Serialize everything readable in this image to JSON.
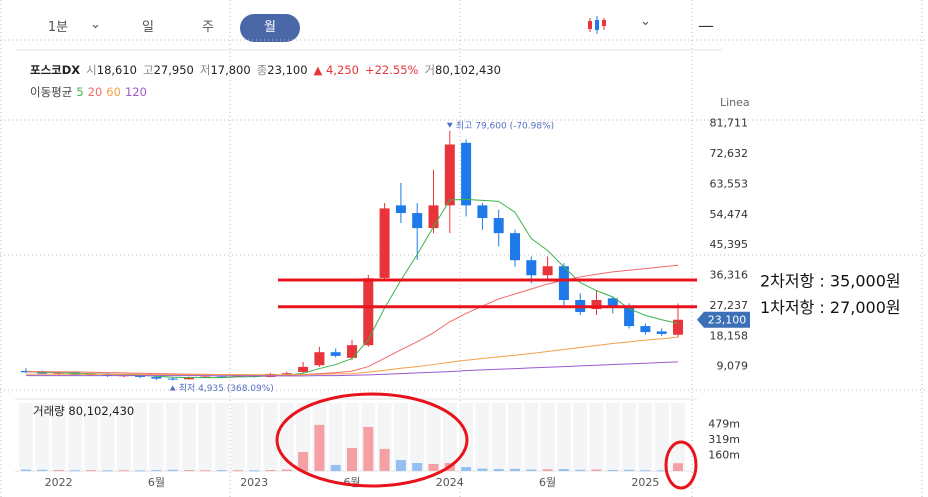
{
  "toolbar": {
    "tabs": [
      "1분",
      "일",
      "주",
      "월"
    ],
    "selected": "월"
  },
  "header": {
    "name": "포스코DX",
    "fields": [
      {
        "key": "시",
        "value": "18,610"
      },
      {
        "key": "고",
        "value": "27,950"
      },
      {
        "key": "저",
        "value": "17,800"
      },
      {
        "key": "종",
        "value": "23,100"
      }
    ],
    "change": "▲ 4,250",
    "change_pct": "+22.55%",
    "volume_key": "거",
    "volume_value": "80,102,430"
  },
  "chart_data": [
    {
      "type": "candlestick",
      "categories": [
        null,
        null,
        "2022",
        null,
        null,
        null,
        null,
        null,
        "6월",
        null,
        null,
        null,
        null,
        null,
        "2023",
        null,
        null,
        null,
        null,
        null,
        "6월",
        null,
        null,
        null,
        null,
        null,
        "2024",
        null,
        null,
        null,
        null,
        null,
        "6월",
        null,
        null,
        null,
        null,
        null,
        "2025",
        null,
        null
      ],
      "open": [
        7800,
        7400,
        7000,
        7300,
        6600,
        6900,
        6300,
        6500,
        6000,
        5500,
        5300,
        5900,
        6100,
        6000,
        6500,
        6000,
        6900,
        7500,
        9500,
        13400,
        11700,
        15500,
        35600,
        57300,
        55000,
        50500,
        57300,
        76000,
        57300,
        53500,
        49000,
        40900,
        36400,
        39100,
        29000,
        26300,
        29500,
        27200,
        21200,
        19600,
        18610
      ],
      "high": [
        8600,
        7900,
        7600,
        7500,
        7100,
        7200,
        6700,
        6800,
        6200,
        6000,
        6100,
        6400,
        6500,
        6600,
        6800,
        7200,
        7600,
        10500,
        15000,
        14500,
        17000,
        36500,
        58000,
        64000,
        58000,
        68000,
        79600,
        77000,
        58000,
        56000,
        50000,
        42000,
        42000,
        40000,
        31000,
        32000,
        30000,
        28000,
        22000,
        20500,
        27950
      ],
      "low": [
        7100,
        6700,
        6600,
        6400,
        6300,
        6000,
        5900,
        5600,
        5100,
        4935,
        5200,
        5700,
        5800,
        5900,
        5800,
        5900,
        6700,
        7200,
        9000,
        11800,
        11000,
        15000,
        34500,
        52000,
        41000,
        49000,
        49000,
        54000,
        50000,
        45000,
        39000,
        34000,
        35000,
        27500,
        24500,
        24500,
        25000,
        20500,
        18600,
        18200,
        17800
      ],
      "close": [
        7400,
        7000,
        7300,
        6600,
        6900,
        6300,
        6500,
        6000,
        5500,
        5300,
        5900,
        6100,
        6000,
        6500,
        6000,
        6900,
        7100,
        9000,
        13400,
        12300,
        15500,
        35500,
        56400,
        55000,
        50500,
        57300,
        75500,
        57300,
        53500,
        49000,
        40900,
        36400,
        39100,
        29000,
        25400,
        29000,
        27200,
        21200,
        19400,
        18850,
        23100
      ],
      "up_color": "#e8343a",
      "down_color": "#1e7ae8",
      "ma_label": "이동평균",
      "series": [
        {
          "name": "5",
          "color": "#3cb44b",
          "values": [
            7600,
            7400,
            7300,
            7100,
            7000,
            6800,
            6700,
            6500,
            6200,
            5900,
            5800,
            5800,
            5800,
            6000,
            6100,
            6300,
            6500,
            7100,
            8500,
            9700,
            11500,
            17100,
            26600,
            34900,
            42600,
            50900,
            58900,
            59100,
            58800,
            58500,
            55200,
            47400,
            43800,
            38900,
            34200,
            31800,
            29900,
            26400,
            24400,
            23100,
            22000
          ]
        },
        {
          "name": "20",
          "color": "#f06a6a",
          "values": [
            7600,
            7600,
            7500,
            7500,
            7400,
            7300,
            7200,
            7100,
            7000,
            6900,
            6800,
            6800,
            6700,
            6700,
            6600,
            6600,
            6600,
            6700,
            7000,
            7300,
            7700,
            9100,
            11600,
            14100,
            16500,
            19200,
            22500,
            25000,
            27200,
            29300,
            30800,
            32300,
            33800,
            34900,
            35900,
            36700,
            37400,
            37900,
            38400,
            38900,
            39400
          ]
        },
        {
          "name": "60",
          "color": "#f5a04a",
          "values": [
            6800,
            6800,
            6800,
            6800,
            6800,
            6800,
            6800,
            6800,
            6700,
            6700,
            6700,
            6700,
            6700,
            6600,
            6600,
            6600,
            6600,
            6700,
            6800,
            6900,
            7000,
            7400,
            8000,
            8600,
            9100,
            9700,
            10400,
            11000,
            11500,
            12000,
            12500,
            13000,
            13600,
            14200,
            14800,
            15400,
            16000,
            16500,
            17000,
            17400,
            17900
          ]
        },
        {
          "name": "120",
          "color": "#9b59d0",
          "values": [
            6400,
            6400,
            6400,
            6400,
            6400,
            6400,
            6400,
            6400,
            6400,
            6400,
            6400,
            6400,
            6300,
            6300,
            6300,
            6300,
            6300,
            6300,
            6400,
            6400,
            6500,
            6600,
            6800,
            7000,
            7200,
            7400,
            7600,
            7900,
            8100,
            8300,
            8500,
            8700,
            8900,
            9100,
            9300,
            9500,
            9700,
            9900,
            10100,
            10300,
            10500
          ]
        }
      ],
      "ylim": [
        0,
        90000
      ],
      "yticks": [
        {
          "value": 9079,
          "label": "9,079"
        },
        {
          "value": 18158,
          "label": "18,158"
        },
        {
          "value": 27237,
          "label": "27,237"
        },
        {
          "value": 36316,
          "label": "36,316"
        },
        {
          "value": 45395,
          "label": "45,395"
        },
        {
          "value": 54474,
          "label": "54,474"
        },
        {
          "value": 63553,
          "label": "63,553"
        },
        {
          "value": 72632,
          "label": "72,632"
        },
        {
          "value": 81711,
          "label": "81,711"
        }
      ],
      "grid": false,
      "scale_label": "Linea",
      "high_label": "최고 79,600 (-70.98%)",
      "low_label": "최저 4,935 (368.09%)",
      "price_tag": "23,100",
      "resistance": [
        {
          "value": 35000,
          "label": "2차저항 : 35,000원",
          "color": "#e8141c"
        },
        {
          "value": 27000,
          "label": "1차저항 : 27,000원",
          "color": "#e8141c"
        }
      ]
    },
    {
      "type": "bar",
      "title": "거래량",
      "title_value": "80,102,430",
      "values": [
        15000000,
        12000000,
        10000000,
        8000000,
        9000000,
        7000000,
        8000000,
        6000000,
        9000000,
        12000000,
        10000000,
        8000000,
        9000000,
        8000000,
        7000000,
        10000000,
        15000000,
        196000000,
        475000000,
        62000000,
        237000000,
        454000000,
        227000000,
        113000000,
        82000000,
        72000000,
        82000000,
        41000000,
        25000000,
        20000000,
        22000000,
        15000000,
        18000000,
        20000000,
        12000000,
        15000000,
        10000000,
        12000000,
        8000000,
        6000000,
        80102430
      ],
      "up_color": "#f4a0a4",
      "down_color": "#93c0f0",
      "ylim": [
        0,
        700000000
      ],
      "yticks": [
        {
          "value": 160000000,
          "label": "160m"
        },
        {
          "value": 319000000,
          "label": "319m"
        },
        {
          "value": 479000000,
          "label": "479m"
        }
      ]
    }
  ]
}
